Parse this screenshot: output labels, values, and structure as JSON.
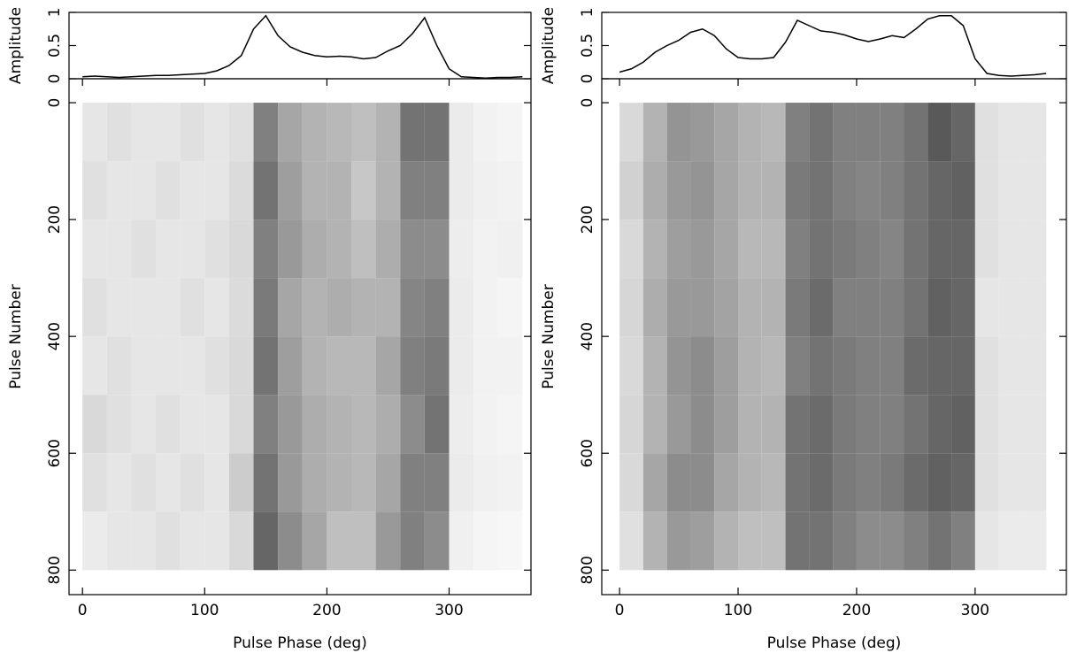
{
  "chart_data": [
    {
      "type": "line",
      "ylabel": "Amplitude",
      "xlim": [
        -11,
        367
      ],
      "ylim": [
        0,
        1
      ],
      "yticks": [
        0,
        0.5,
        1
      ],
      "color": "#000000",
      "x": [
        0,
        10,
        20,
        30,
        40,
        50,
        60,
        70,
        80,
        90,
        100,
        110,
        120,
        130,
        140,
        150,
        160,
        170,
        180,
        190,
        200,
        210,
        220,
        230,
        240,
        250,
        260,
        270,
        280,
        290,
        300,
        310,
        320,
        330,
        340,
        350,
        360
      ],
      "values": [
        0.03,
        0.04,
        0.03,
        0.02,
        0.03,
        0.04,
        0.05,
        0.05,
        0.06,
        0.07,
        0.08,
        0.12,
        0.2,
        0.35,
        0.75,
        0.95,
        0.65,
        0.48,
        0.4,
        0.35,
        0.33,
        0.34,
        0.33,
        0.3,
        0.32,
        0.42,
        0.5,
        0.68,
        0.92,
        0.5,
        0.15,
        0.03,
        0.02,
        0.01,
        0.02,
        0.02,
        0.03
      ]
    },
    {
      "type": "heatmap",
      "ylabel": "Pulse Number",
      "xlabel": "Pulse Phase (deg)",
      "xlim": [
        -11,
        367
      ],
      "ylim": [
        842,
        -41
      ],
      "xticks": [
        0,
        100,
        200,
        300
      ],
      "yticks": [
        0,
        200,
        400,
        600,
        800
      ],
      "x_bins": [
        0,
        20,
        40,
        60,
        80,
        100,
        120,
        140,
        160,
        180,
        200,
        220,
        240,
        260,
        280,
        300,
        320,
        340,
        360
      ],
      "y_bins": [
        0,
        100,
        200,
        300,
        400,
        500,
        600,
        700,
        800
      ],
      "values": [
        [
          0.1,
          0.12,
          0.1,
          0.1,
          0.12,
          0.1,
          0.12,
          0.5,
          0.35,
          0.3,
          0.28,
          0.25,
          0.3,
          0.55,
          0.55,
          0.08,
          0.05,
          0.04
        ],
        [
          0.12,
          0.1,
          0.1,
          0.12,
          0.1,
          0.1,
          0.14,
          0.55,
          0.38,
          0.3,
          0.3,
          0.22,
          0.3,
          0.5,
          0.5,
          0.08,
          0.06,
          0.05
        ],
        [
          0.1,
          0.1,
          0.12,
          0.1,
          0.1,
          0.12,
          0.15,
          0.5,
          0.4,
          0.32,
          0.3,
          0.25,
          0.32,
          0.45,
          0.45,
          0.07,
          0.05,
          0.06
        ],
        [
          0.12,
          0.1,
          0.1,
          0.1,
          0.12,
          0.1,
          0.14,
          0.52,
          0.35,
          0.3,
          0.32,
          0.3,
          0.3,
          0.48,
          0.5,
          0.08,
          0.05,
          0.04
        ],
        [
          0.1,
          0.12,
          0.1,
          0.1,
          0.1,
          0.12,
          0.15,
          0.55,
          0.38,
          0.3,
          0.28,
          0.28,
          0.35,
          0.5,
          0.52,
          0.08,
          0.05,
          0.05
        ],
        [
          0.15,
          0.12,
          0.1,
          0.12,
          0.1,
          0.1,
          0.15,
          0.5,
          0.4,
          0.32,
          0.3,
          0.28,
          0.32,
          0.45,
          0.55,
          0.07,
          0.05,
          0.04
        ],
        [
          0.12,
          0.1,
          0.12,
          0.1,
          0.12,
          0.1,
          0.2,
          0.55,
          0.4,
          0.32,
          0.3,
          0.28,
          0.35,
          0.5,
          0.5,
          0.08,
          0.06,
          0.05
        ],
        [
          0.08,
          0.1,
          0.1,
          0.12,
          0.1,
          0.1,
          0.15,
          0.6,
          0.45,
          0.35,
          0.25,
          0.25,
          0.4,
          0.5,
          0.45,
          0.06,
          0.04,
          0.03
        ]
      ]
    },
    {
      "type": "line",
      "ylabel": "Amplitude",
      "xlim": [
        -15,
        377
      ],
      "ylim": [
        0,
        1
      ],
      "yticks": [
        0,
        0.5,
        1
      ],
      "color": "#000000",
      "x": [
        0,
        10,
        20,
        30,
        40,
        50,
        60,
        70,
        80,
        90,
        100,
        110,
        120,
        130,
        140,
        150,
        160,
        170,
        180,
        190,
        200,
        210,
        220,
        230,
        240,
        250,
        260,
        270,
        280,
        290,
        300,
        310,
        320,
        330,
        340,
        350,
        360
      ],
      "values": [
        0.1,
        0.15,
        0.25,
        0.4,
        0.5,
        0.58,
        0.7,
        0.75,
        0.65,
        0.45,
        0.32,
        0.3,
        0.3,
        0.32,
        0.55,
        0.88,
        0.8,
        0.72,
        0.7,
        0.66,
        0.6,
        0.56,
        0.6,
        0.65,
        0.62,
        0.75,
        0.9,
        0.95,
        0.95,
        0.8,
        0.3,
        0.08,
        0.05,
        0.04,
        0.05,
        0.06,
        0.08
      ]
    },
    {
      "type": "heatmap",
      "ylabel": "Pulse Number",
      "xlabel": "Pulse Phase (deg)",
      "xlim": [
        -15,
        377
      ],
      "ylim": [
        842,
        -41
      ],
      "xticks": [
        0,
        100,
        200,
        300
      ],
      "yticks": [
        0,
        200,
        400,
        600,
        800
      ],
      "x_bins": [
        0,
        20,
        40,
        60,
        80,
        100,
        120,
        140,
        160,
        180,
        200,
        220,
        240,
        260,
        280,
        300,
        320,
        340,
        360
      ],
      "y_bins": [
        0,
        100,
        200,
        300,
        400,
        500,
        600,
        700,
        800
      ],
      "values": [
        [
          0.15,
          0.3,
          0.42,
          0.4,
          0.35,
          0.3,
          0.28,
          0.5,
          0.55,
          0.5,
          0.5,
          0.5,
          0.55,
          0.65,
          0.6,
          0.12,
          0.1,
          0.1
        ],
        [
          0.18,
          0.32,
          0.4,
          0.42,
          0.35,
          0.3,
          0.3,
          0.52,
          0.55,
          0.5,
          0.48,
          0.5,
          0.55,
          0.6,
          0.62,
          0.12,
          0.1,
          0.1
        ],
        [
          0.15,
          0.3,
          0.38,
          0.4,
          0.35,
          0.28,
          0.28,
          0.5,
          0.55,
          0.52,
          0.5,
          0.48,
          0.55,
          0.6,
          0.6,
          0.12,
          0.1,
          0.1
        ],
        [
          0.16,
          0.32,
          0.4,
          0.4,
          0.36,
          0.3,
          0.3,
          0.52,
          0.58,
          0.5,
          0.5,
          0.5,
          0.55,
          0.62,
          0.6,
          0.1,
          0.1,
          0.1
        ],
        [
          0.15,
          0.3,
          0.42,
          0.45,
          0.38,
          0.3,
          0.28,
          0.5,
          0.55,
          0.52,
          0.5,
          0.5,
          0.58,
          0.6,
          0.6,
          0.12,
          0.1,
          0.1
        ],
        [
          0.16,
          0.3,
          0.4,
          0.45,
          0.38,
          0.3,
          0.3,
          0.55,
          0.58,
          0.52,
          0.5,
          0.5,
          0.55,
          0.6,
          0.62,
          0.12,
          0.1,
          0.1
        ],
        [
          0.15,
          0.35,
          0.45,
          0.45,
          0.35,
          0.3,
          0.28,
          0.55,
          0.58,
          0.52,
          0.5,
          0.52,
          0.58,
          0.62,
          0.6,
          0.12,
          0.1,
          0.1
        ],
        [
          0.12,
          0.3,
          0.4,
          0.38,
          0.3,
          0.25,
          0.25,
          0.55,
          0.55,
          0.5,
          0.45,
          0.45,
          0.5,
          0.55,
          0.5,
          0.1,
          0.08,
          0.08
        ]
      ]
    }
  ]
}
